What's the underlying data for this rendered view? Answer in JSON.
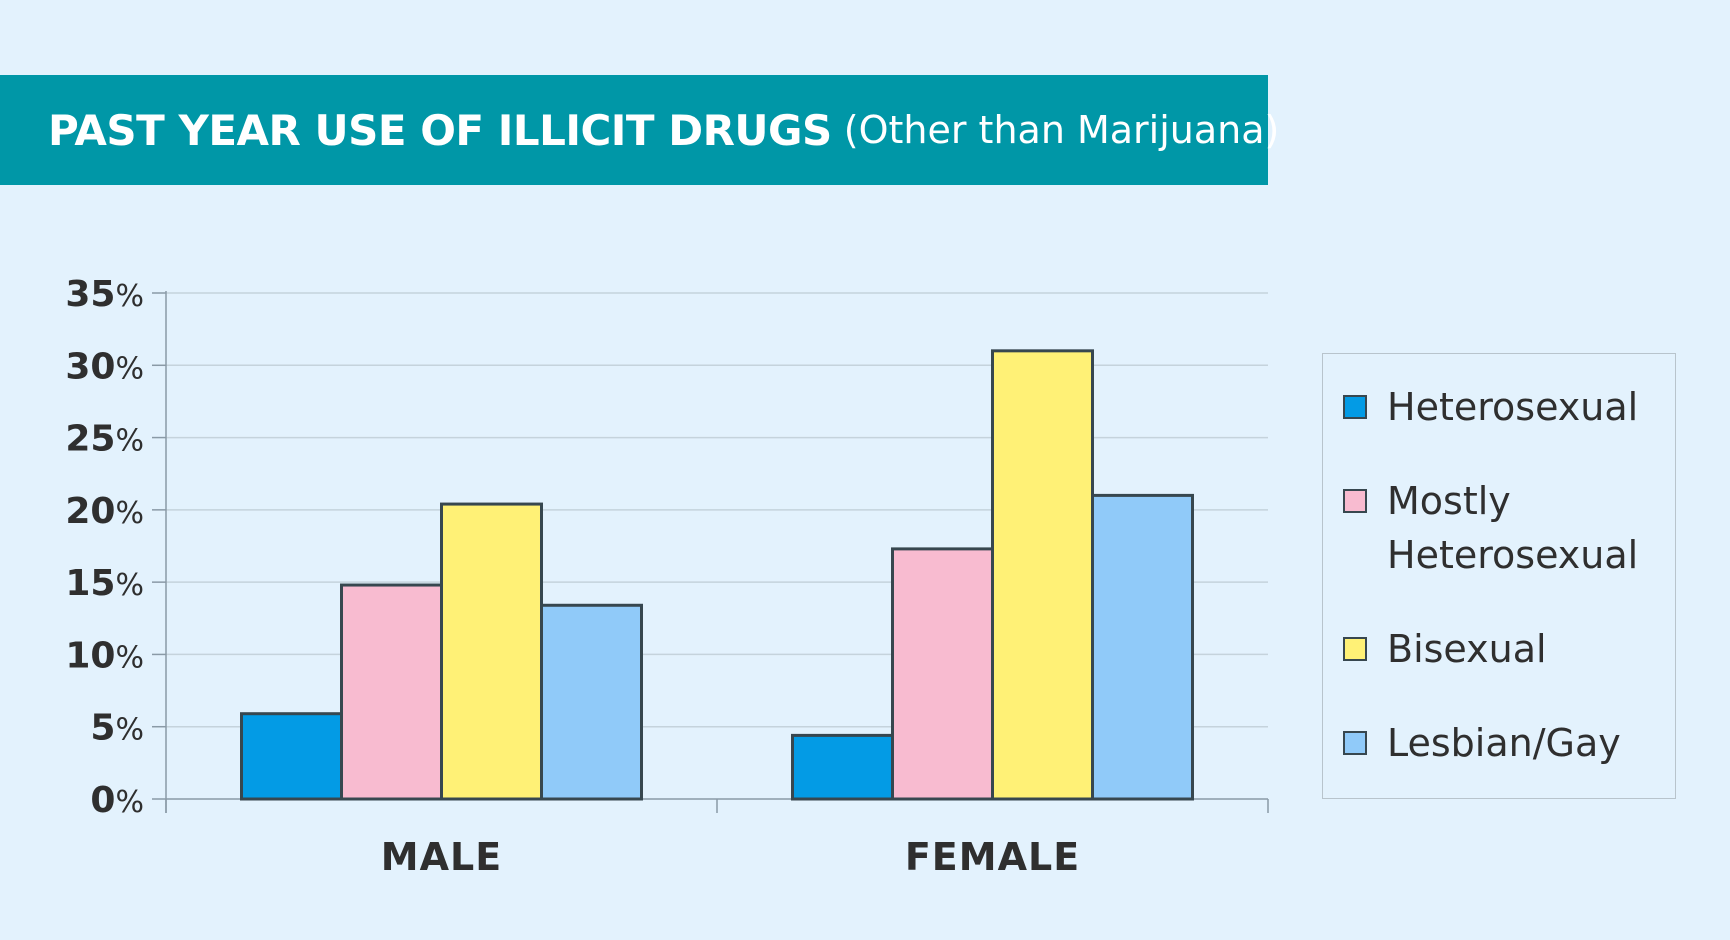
{
  "title": {
    "main": "PAST YEAR USE OF ILLICIT DRUGS",
    "sub": "(Other than Marijuana)"
  },
  "colors": {
    "banner": "#0097a7",
    "background": "#e3f2fd",
    "heterosexual": "#039be5",
    "mostly_heterosexual": "#f8bbd0",
    "bisexual": "#fff176",
    "lesbian_gay": "#90caf9",
    "bar_stroke": "#37474f"
  },
  "chart_data": {
    "type": "bar",
    "title": "PAST YEAR USE OF ILLICIT DRUGS (Other than Marijuana)",
    "categories": [
      "MALE",
      "FEMALE"
    ],
    "series": [
      {
        "name": "Heterosexual",
        "values": [
          5.9,
          4.4
        ],
        "color": "#039be5"
      },
      {
        "name": "Mostly Heterosexual",
        "values": [
          14.8,
          17.3
        ],
        "color": "#f8bbd0"
      },
      {
        "name": "Bisexual",
        "values": [
          20.4,
          31.0
        ],
        "color": "#fff176"
      },
      {
        "name": "Lesbian/Gay",
        "values": [
          13.4,
          21.0
        ],
        "color": "#90caf9"
      }
    ],
    "yticks": [
      {
        "num": "0",
        "unit": "%"
      },
      {
        "num": "5",
        "unit": "%"
      },
      {
        "num": "10",
        "unit": "%"
      },
      {
        "num": "15",
        "unit": "%"
      },
      {
        "num": "20",
        "unit": "%"
      },
      {
        "num": "25",
        "unit": "%"
      },
      {
        "num": "30",
        "unit": "%"
      },
      {
        "num": "35",
        "unit": "%"
      }
    ],
    "ylim": [
      0,
      35
    ],
    "grid": true,
    "legend_position": "right",
    "legend": [
      {
        "lines": [
          "Heterosexual"
        ],
        "color": "#039be5"
      },
      {
        "lines": [
          "Mostly",
          "Heterosexual"
        ],
        "color": "#f8bbd0"
      },
      {
        "lines": [
          "Bisexual"
        ],
        "color": "#fff176"
      },
      {
        "lines": [
          "Lesbian/Gay"
        ],
        "color": "#90caf9"
      }
    ]
  }
}
